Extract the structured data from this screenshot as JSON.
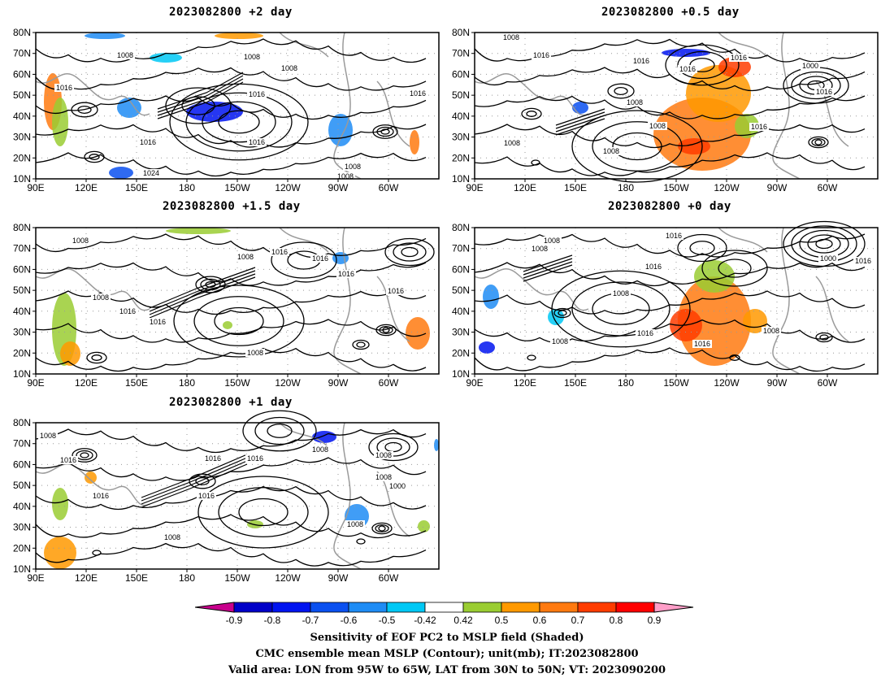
{
  "panels": [
    {
      "title": "2023082800 +2 day",
      "contour_labels": [
        "1008",
        "1016",
        "1008",
        "1008",
        "1016",
        "1016",
        "1016",
        "1024",
        "1008",
        "1008",
        "1016"
      ]
    },
    {
      "title": "2023082800 +0.5 day",
      "contour_labels": [
        "1008",
        "1016",
        "1016",
        "1016",
        "1008",
        "1008",
        "1008",
        "1000",
        "1016",
        "1016",
        "1008",
        "1016"
      ]
    },
    {
      "title": "2023082800 +1.5 day",
      "contour_labels": [
        "1008",
        "1008",
        "1016",
        "1016",
        "1008",
        "1016",
        "1016",
        "1016",
        "1008",
        "1016"
      ]
    },
    {
      "title": "2023082800 +0 day",
      "contour_labels": [
        "1008",
        "1008",
        "1016",
        "1008",
        "1016",
        "1000",
        "1016",
        "1016",
        "1008",
        "1008",
        "1016"
      ]
    },
    {
      "title": "2023082800 +1 day",
      "contour_labels": [
        "1008",
        "1016",
        "1016",
        "1016",
        "1008",
        "1008",
        "1008",
        "1000",
        "1008",
        "1016",
        "1008",
        "1016"
      ]
    }
  ],
  "axes": {
    "lat_ticks": [
      "80N",
      "70N",
      "60N",
      "50N",
      "40N",
      "30N",
      "20N",
      "10N"
    ],
    "lon_ticks": [
      "90E",
      "120E",
      "150E",
      "180",
      "150W",
      "120W",
      "90W",
      "60W"
    ]
  },
  "colorbar": {
    "labels": [
      "-0.9",
      "-0.8",
      "-0.7",
      "-0.6",
      "-0.5",
      "-0.42",
      "0.42",
      "0.5",
      "0.6",
      "0.7",
      "0.8",
      "0.9"
    ],
    "colors": [
      "#c8008c",
      "#0000c8",
      "#0014f0",
      "#0a50f0",
      "#1e8cf5",
      "#00c8f5",
      "#ffffff",
      "#9acd32",
      "#ff9900",
      "#ff7a10",
      "#ff3c00",
      "#ff0000",
      "#ff9ec8"
    ]
  },
  "captions": [
    "Sensitivity of EOF PC2 to MSLP field (Shaded)",
    "CMC ensemble mean MSLP (Contour); unit(mb); IT:2023082800",
    "Valid area: LON from 95W to 65W, LAT from 30N to 50N; VT: 2023090200"
  ]
}
